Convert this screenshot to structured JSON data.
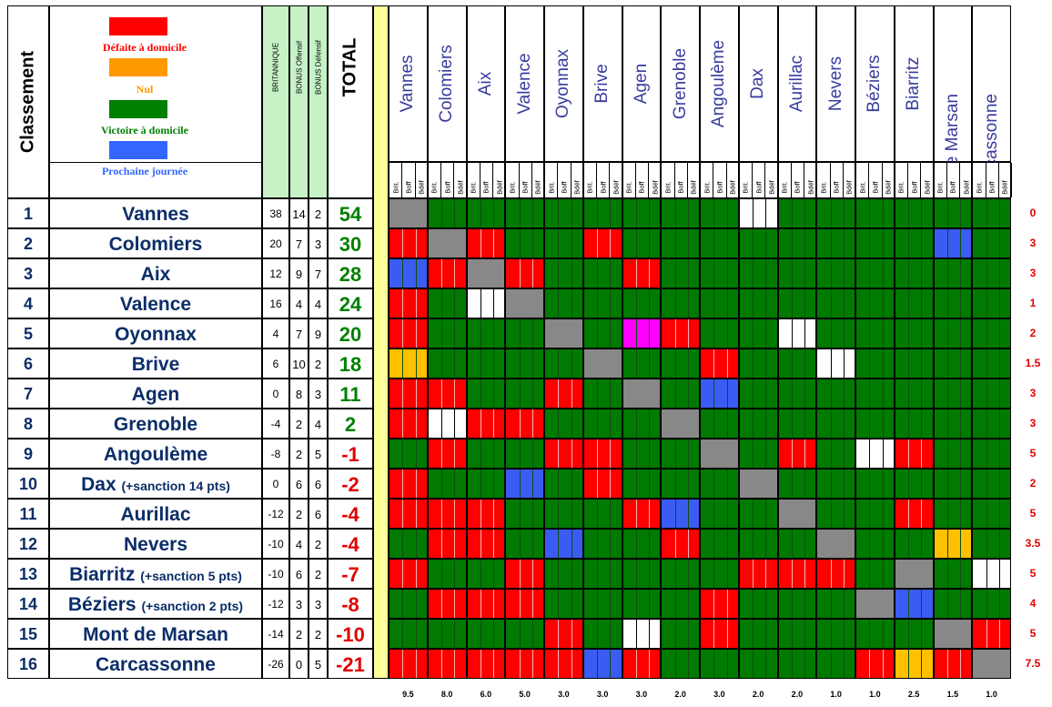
{
  "header": {
    "classement": "Classement",
    "total": "TOTAL",
    "britannique": "BRITANNIQUE",
    "bonus_offensif": "BONUS Offensif",
    "bonus_defensif": "BONUS Défensif",
    "sub_labels": [
      "Brit.",
      "Boff",
      "Bdéf"
    ]
  },
  "legend": [
    {
      "label": "Défaite à domicile",
      "color": "#ff0000",
      "text_color": "#ff0000"
    },
    {
      "label": "Nul",
      "color": "#ff9900",
      "text_color": "#ff9900"
    },
    {
      "label": "Victoire à domicile",
      "color": "#008000",
      "text_color": "#008000"
    },
    {
      "label": "Prochaine journée",
      "color": "#3366ff",
      "text_color": "#3366ff"
    }
  ],
  "colors": {
    "R": "#ff0000",
    "G": "#007a00",
    "X": "#888888",
    "W": "#ffffff",
    "B": "#3a5cf2",
    "Y": "#ffc000",
    "M": "#ff00ff",
    "total_green": "#008000",
    "total_red": "#e00000",
    "name_blue": "#0b2e68",
    "header_blue": "#3a3c9e",
    "bonus_green": "#c6f2c6",
    "yellow_col": "#ffff99"
  },
  "teams": [
    {
      "rank": "1",
      "name": "Vannes",
      "sanction": "",
      "brit": "38",
      "boff": "14",
      "bdef": "2",
      "total": "54",
      "right": "0"
    },
    {
      "rank": "2",
      "name": "Colomiers",
      "sanction": "",
      "brit": "20",
      "boff": "7",
      "bdef": "3",
      "total": "30",
      "right": "3"
    },
    {
      "rank": "3",
      "name": "Aix",
      "sanction": "",
      "brit": "12",
      "boff": "9",
      "bdef": "7",
      "total": "28",
      "right": "3"
    },
    {
      "rank": "4",
      "name": "Valence",
      "sanction": "",
      "brit": "16",
      "boff": "4",
      "bdef": "4",
      "total": "24",
      "right": "1"
    },
    {
      "rank": "5",
      "name": "Oyonnax",
      "sanction": "",
      "brit": "4",
      "boff": "7",
      "bdef": "9",
      "total": "20",
      "right": "2"
    },
    {
      "rank": "6",
      "name": "Brive",
      "sanction": "",
      "brit": "6",
      "boff": "10",
      "bdef": "2",
      "total": "18",
      "right": "1.5"
    },
    {
      "rank": "7",
      "name": "Agen",
      "sanction": "",
      "brit": "0",
      "boff": "8",
      "bdef": "3",
      "total": "11",
      "right": "3"
    },
    {
      "rank": "8",
      "name": "Grenoble",
      "sanction": "",
      "brit": "-4",
      "boff": "2",
      "bdef": "4",
      "total": "2",
      "right": "3"
    },
    {
      "rank": "9",
      "name": "Angoulème",
      "sanction": "",
      "brit": "-8",
      "boff": "2",
      "bdef": "5",
      "total": "-1",
      "right": "5"
    },
    {
      "rank": "10",
      "name": "Dax",
      "sanction": "(+sanction 14 pts)",
      "brit": "0",
      "boff": "6",
      "bdef": "6",
      "total": "-2",
      "right": "2"
    },
    {
      "rank": "11",
      "name": "Aurillac",
      "sanction": "",
      "brit": "-12",
      "boff": "2",
      "bdef": "6",
      "total": "-4",
      "right": "5"
    },
    {
      "rank": "12",
      "name": "Nevers",
      "sanction": "",
      "brit": "-10",
      "boff": "4",
      "bdef": "2",
      "total": "-4",
      "right": "3.5"
    },
    {
      "rank": "13",
      "name": "Biarritz",
      "sanction": "(+sanction 5 pts)",
      "brit": "-10",
      "boff": "6",
      "bdef": "2",
      "total": "-7",
      "right": "5"
    },
    {
      "rank": "14",
      "name": "Béziers",
      "sanction": "(+sanction 2 pts)",
      "brit": "-12",
      "boff": "3",
      "bdef": "3",
      "total": "-8",
      "right": "4"
    },
    {
      "rank": "15",
      "name": "Mont de Marsan",
      "sanction": "",
      "brit": "-14",
      "boff": "2",
      "bdef": "2",
      "total": "-10",
      "right": "5"
    },
    {
      "rank": "16",
      "name": "Carcassonne",
      "sanction": "",
      "brit": "-26",
      "boff": "0",
      "bdef": "5",
      "total": "-21",
      "right": "7.5"
    }
  ],
  "columns": [
    "Vannes",
    "Colomiers",
    "Aix",
    "Valence",
    "Oyonnax",
    "Brive",
    "Agen",
    "Grenoble",
    "Angoulème",
    "Dax",
    "Aurillac",
    "Nevers",
    "Béziers",
    "Biarritz",
    "Mont de Marsan",
    "Carcassonne"
  ],
  "bottom": [
    "9.5",
    "8.0",
    "6.0",
    "5.0",
    "3.0",
    "3.0",
    "3.0",
    "2.0",
    "3.0",
    "2.0",
    "2.0",
    "1.0",
    "1.0",
    "2.5",
    "1.5",
    "1.0"
  ],
  "grid": [
    "XGGGGGGGGWGGGGGG",
    "RXRGGRGGGGGGGGBG",
    "BRXRGGRGGGGGGGGG",
    "RGWXGGGGGGGGGGGG",
    "RGGGXGMRGGWGGGGG",
    "YGGGGXGGRGGWGGGG",
    "RRGGRGXGBGGGGGGG",
    "RWRRGGGXGGGGGGGG",
    "GRGGRRGGXGRGWRGG",
    "RGGBGRGGGXGGGGGG",
    "RRRGGGRBGGXGGRGG",
    "GRRGBGGRGGGXGGYG",
    "RGGRGGGGGRRRGXGW",
    "GRRRGGGGRGGGXBGG",
    "GGGGRGWGRGGGGGXR",
    "RRRRRBRGGGGGRYRX"
  ]
}
